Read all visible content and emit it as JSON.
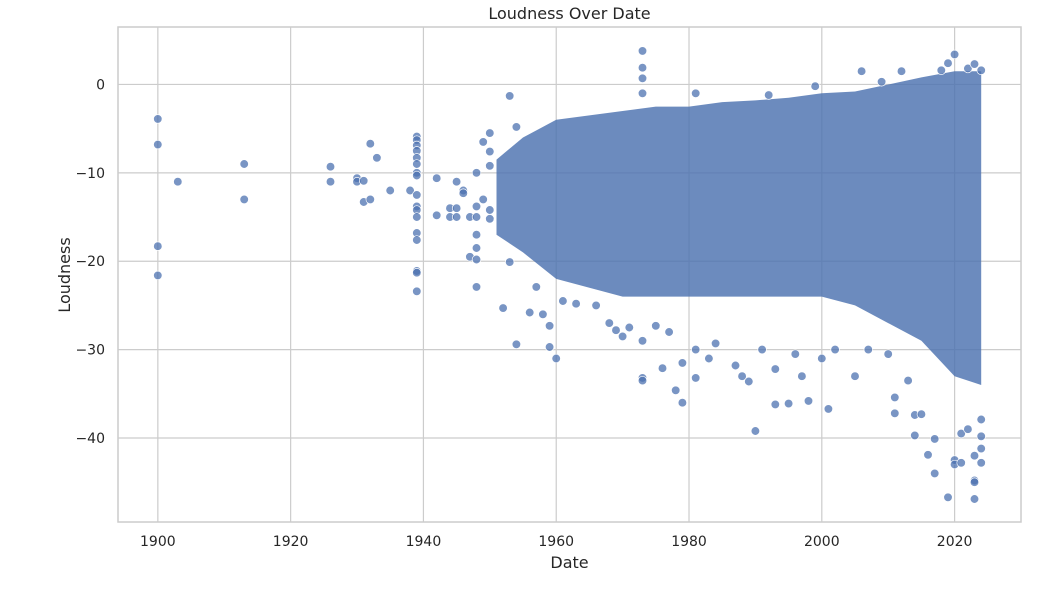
{
  "chart_data": {
    "type": "scatter",
    "title": "Loudness Over Date",
    "xlabel": "Date",
    "ylabel": "Loudness",
    "xlim": [
      1894,
      2030
    ],
    "ylim": [
      -49.5,
      6.5
    ],
    "x_ticks": [
      1900,
      1920,
      1940,
      1960,
      1980,
      2000,
      2020
    ],
    "x_tick_labels": [
      "1900",
      "1920",
      "1940",
      "1960",
      "1980",
      "2000",
      "2020"
    ],
    "y_ticks": [
      0,
      -10,
      -20,
      -30,
      -40
    ],
    "y_tick_labels": [
      "0",
      "−10",
      "−20",
      "−30",
      "−40"
    ],
    "grid": true,
    "color": "#4c72b0",
    "dense_region_by_year": [
      {
        "x": 1951,
        "top": -8.5,
        "bottom": -17
      },
      {
        "x": 1955,
        "top": -6,
        "bottom": -19
      },
      {
        "x": 1960,
        "top": -4,
        "bottom": -22
      },
      {
        "x": 1965,
        "top": -3.5,
        "bottom": -23
      },
      {
        "x": 1970,
        "top": -3,
        "bottom": -24
      },
      {
        "x": 1975,
        "top": -2.5,
        "bottom": -24
      },
      {
        "x": 1980,
        "top": -2.5,
        "bottom": -24
      },
      {
        "x": 1985,
        "top": -2,
        "bottom": -24
      },
      {
        "x": 1990,
        "top": -1.8,
        "bottom": -24
      },
      {
        "x": 1995,
        "top": -1.5,
        "bottom": -24
      },
      {
        "x": 2000,
        "top": -1,
        "bottom": -24
      },
      {
        "x": 2005,
        "top": -0.8,
        "bottom": -25
      },
      {
        "x": 2010,
        "top": 0,
        "bottom": -27
      },
      {
        "x": 2015,
        "top": 0.8,
        "bottom": -29
      },
      {
        "x": 2020,
        "top": 1.5,
        "bottom": -33
      },
      {
        "x": 2024,
        "top": 1.5,
        "bottom": -34
      }
    ],
    "points": [
      {
        "x": 1900,
        "y": -3.9
      },
      {
        "x": 1900,
        "y": -6.8
      },
      {
        "x": 1900,
        "y": -18.3
      },
      {
        "x": 1900,
        "y": -21.6
      },
      {
        "x": 1903,
        "y": -11.0
      },
      {
        "x": 1913,
        "y": -9.0
      },
      {
        "x": 1913,
        "y": -13.0
      },
      {
        "x": 1926,
        "y": -9.3
      },
      {
        "x": 1926,
        "y": -11.0
      },
      {
        "x": 1930,
        "y": -10.6
      },
      {
        "x": 1930,
        "y": -11.0
      },
      {
        "x": 1931,
        "y": -10.9
      },
      {
        "x": 1931,
        "y": -13.3
      },
      {
        "x": 1932,
        "y": -6.7
      },
      {
        "x": 1932,
        "y": -13.0
      },
      {
        "x": 1933,
        "y": -8.3
      },
      {
        "x": 1935,
        "y": -12.0
      },
      {
        "x": 1938,
        "y": -12.0
      },
      {
        "x": 1939,
        "y": -5.9
      },
      {
        "x": 1939,
        "y": -6.3
      },
      {
        "x": 1939,
        "y": -6.9
      },
      {
        "x": 1939,
        "y": -7.5
      },
      {
        "x": 1939,
        "y": -8.3
      },
      {
        "x": 1939,
        "y": -9.0
      },
      {
        "x": 1939,
        "y": -10.0
      },
      {
        "x": 1939,
        "y": -10.3
      },
      {
        "x": 1939,
        "y": -12.5
      },
      {
        "x": 1939,
        "y": -13.8
      },
      {
        "x": 1939,
        "y": -14.2
      },
      {
        "x": 1939,
        "y": -15.0
      },
      {
        "x": 1939,
        "y": -16.8
      },
      {
        "x": 1939,
        "y": -17.6
      },
      {
        "x": 1939,
        "y": -21.1
      },
      {
        "x": 1939,
        "y": -21.3
      },
      {
        "x": 1939,
        "y": -23.4
      },
      {
        "x": 1942,
        "y": -10.6
      },
      {
        "x": 1942,
        "y": -14.8
      },
      {
        "x": 1944,
        "y": -14.0
      },
      {
        "x": 1944,
        "y": -15.0
      },
      {
        "x": 1945,
        "y": -11.0
      },
      {
        "x": 1945,
        "y": -14.0
      },
      {
        "x": 1945,
        "y": -15.0
      },
      {
        "x": 1946,
        "y": -12.0
      },
      {
        "x": 1946,
        "y": -12.3
      },
      {
        "x": 1947,
        "y": -15.0
      },
      {
        "x": 1947,
        "y": -19.5
      },
      {
        "x": 1948,
        "y": -10.0
      },
      {
        "x": 1948,
        "y": -13.8
      },
      {
        "x": 1948,
        "y": -15.0
      },
      {
        "x": 1948,
        "y": -17.0
      },
      {
        "x": 1948,
        "y": -18.5
      },
      {
        "x": 1948,
        "y": -19.8
      },
      {
        "x": 1948,
        "y": -22.9
      },
      {
        "x": 1949,
        "y": -6.5
      },
      {
        "x": 1949,
        "y": -13.0
      },
      {
        "x": 1950,
        "y": -5.5
      },
      {
        "x": 1950,
        "y": -7.6
      },
      {
        "x": 1950,
        "y": -9.2
      },
      {
        "x": 1950,
        "y": -14.2
      },
      {
        "x": 1950,
        "y": -15.2
      },
      {
        "x": 1952,
        "y": -25.3
      },
      {
        "x": 1953,
        "y": -1.3
      },
      {
        "x": 1953,
        "y": -20.1
      },
      {
        "x": 1954,
        "y": -4.8
      },
      {
        "x": 1954,
        "y": -29.4
      },
      {
        "x": 1956,
        "y": -25.8
      },
      {
        "x": 1957,
        "y": -22.9
      },
      {
        "x": 1958,
        "y": -26.0
      },
      {
        "x": 1959,
        "y": -27.3
      },
      {
        "x": 1959,
        "y": -29.7
      },
      {
        "x": 1960,
        "y": -31.0
      },
      {
        "x": 1961,
        "y": -24.5
      },
      {
        "x": 1963,
        "y": -24.8
      },
      {
        "x": 1966,
        "y": -25.0
      },
      {
        "x": 1968,
        "y": -27.0
      },
      {
        "x": 1969,
        "y": -27.8
      },
      {
        "x": 1970,
        "y": -28.5
      },
      {
        "x": 1971,
        "y": -27.5
      },
      {
        "x": 1973,
        "y": 3.8
      },
      {
        "x": 1973,
        "y": 1.9
      },
      {
        "x": 1973,
        "y": 0.7
      },
      {
        "x": 1973,
        "y": -1.0
      },
      {
        "x": 1973,
        "y": -29.0
      },
      {
        "x": 1973,
        "y": -33.2
      },
      {
        "x": 1973,
        "y": -33.5
      },
      {
        "x": 1975,
        "y": -27.3
      },
      {
        "x": 1976,
        "y": -32.1
      },
      {
        "x": 1977,
        "y": -28.0
      },
      {
        "x": 1978,
        "y": -34.6
      },
      {
        "x": 1979,
        "y": -36.0
      },
      {
        "x": 1979,
        "y": -31.5
      },
      {
        "x": 1981,
        "y": -33.2
      },
      {
        "x": 1981,
        "y": -30.0
      },
      {
        "x": 1981,
        "y": -1.0
      },
      {
        "x": 1983,
        "y": -31.0
      },
      {
        "x": 1984,
        "y": -29.3
      },
      {
        "x": 1987,
        "y": -31.8
      },
      {
        "x": 1988,
        "y": -33.0
      },
      {
        "x": 1989,
        "y": -33.6
      },
      {
        "x": 1990,
        "y": -39.2
      },
      {
        "x": 1991,
        "y": -30.0
      },
      {
        "x": 1992,
        "y": -1.2
      },
      {
        "x": 1993,
        "y": -32.2
      },
      {
        "x": 1993,
        "y": -36.2
      },
      {
        "x": 1995,
        "y": -36.1
      },
      {
        "x": 1996,
        "y": -30.5
      },
      {
        "x": 1997,
        "y": -33.0
      },
      {
        "x": 1998,
        "y": -35.8
      },
      {
        "x": 1999,
        "y": -0.2
      },
      {
        "x": 2000,
        "y": -31.0
      },
      {
        "x": 2001,
        "y": -36.7
      },
      {
        "x": 2002,
        "y": -30.0
      },
      {
        "x": 2005,
        "y": -33.0
      },
      {
        "x": 2006,
        "y": 1.5
      },
      {
        "x": 2007,
        "y": -30.0
      },
      {
        "x": 2009,
        "y": 0.3
      },
      {
        "x": 2010,
        "y": -30.5
      },
      {
        "x": 2011,
        "y": -35.4
      },
      {
        "x": 2011,
        "y": -37.2
      },
      {
        "x": 2012,
        "y": 1.5
      },
      {
        "x": 2013,
        "y": -33.5
      },
      {
        "x": 2014,
        "y": -39.7
      },
      {
        "x": 2014,
        "y": -37.4
      },
      {
        "x": 2015,
        "y": -37.3
      },
      {
        "x": 2016,
        "y": -41.9
      },
      {
        "x": 2017,
        "y": -44.0
      },
      {
        "x": 2017,
        "y": -40.1
      },
      {
        "x": 2018,
        "y": 1.6
      },
      {
        "x": 2019,
        "y": -46.7
      },
      {
        "x": 2019,
        "y": 2.4
      },
      {
        "x": 2020,
        "y": 3.4
      },
      {
        "x": 2020,
        "y": -42.5
      },
      {
        "x": 2020,
        "y": -43.0
      },
      {
        "x": 2021,
        "y": -42.8
      },
      {
        "x": 2021,
        "y": -39.5
      },
      {
        "x": 2022,
        "y": 1.8
      },
      {
        "x": 2022,
        "y": -39.0
      },
      {
        "x": 2023,
        "y": 2.3
      },
      {
        "x": 2023,
        "y": -44.8
      },
      {
        "x": 2023,
        "y": -45.0
      },
      {
        "x": 2023,
        "y": -46.9
      },
      {
        "x": 2023,
        "y": -42.0
      },
      {
        "x": 2024,
        "y": 1.6
      },
      {
        "x": 2024,
        "y": -42.8
      },
      {
        "x": 2024,
        "y": -41.2
      },
      {
        "x": 2024,
        "y": -37.9
      },
      {
        "x": 2024,
        "y": -39.8
      }
    ]
  }
}
